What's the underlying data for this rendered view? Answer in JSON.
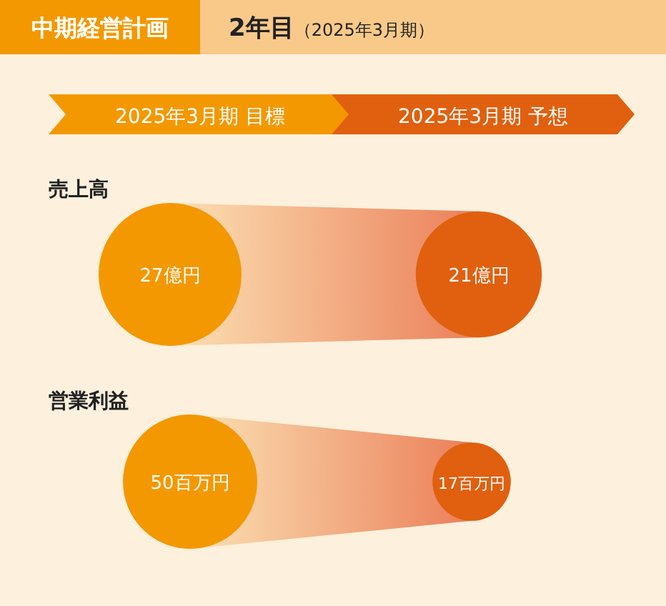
{
  "chart_data": {
    "type": "other",
    "title": "中期経営計画",
    "subtitle": "2年目（2025年3月期）",
    "categories": [
      "2025年3月期 目標",
      "2025年3月期 予想"
    ],
    "series": [
      {
        "name": "売上高",
        "colors": [
          "#f39800",
          "#e0600f"
        ],
        "values": [
          27,
          21
        ],
        "value_labels": [
          "27億円",
          "21億円"
        ]
      },
      {
        "name": "営業利益",
        "colors": [
          "#f39800",
          "#e0600f"
        ],
        "values": [
          50,
          17
        ],
        "value_labels": [
          "50百万円",
          "17百万円"
        ]
      }
    ]
  }
}
